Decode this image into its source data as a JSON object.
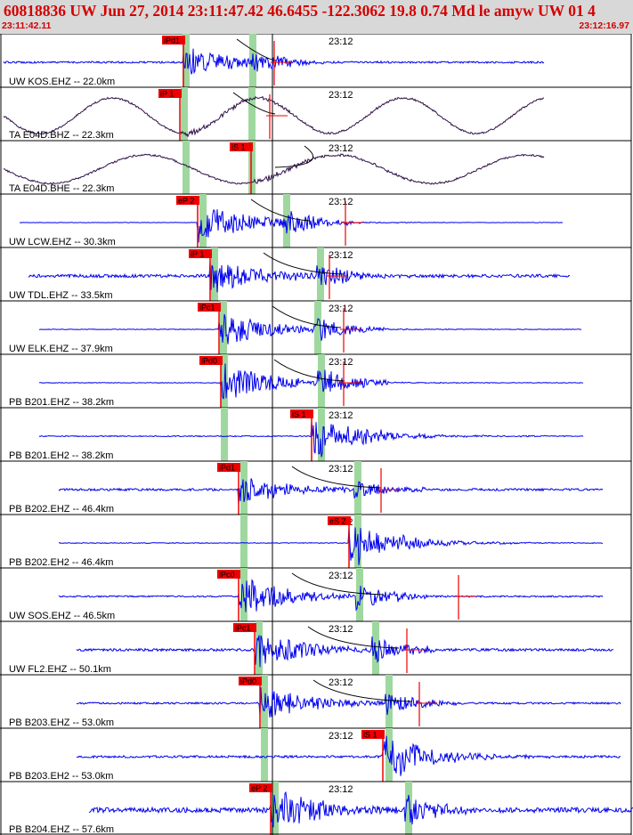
{
  "header": {
    "title": "60818836 UW Jun 27, 2014 23:11:47.42   46.6455 -122.3062 19.8 0.74 Md le amyw UW 01   4",
    "start_time": "23:11:42.11",
    "end_time": "23:12:16.97"
  },
  "minute_mark_label": "23:12",
  "colors": {
    "header_bg": "#d8d8d8",
    "header_text": "#d40000",
    "trace_blue": "#0000ee",
    "trace_dark": "#301048",
    "pick_red": "#ee0000",
    "pick_window_green": "#9fd89f"
  },
  "traces": [
    {
      "label": "UW KOS.EHZ -- 22.0km",
      "pick": "iPd1",
      "amp": 0.6,
      "noise": 0.15,
      "style": "blue"
    },
    {
      "label": "TA E04D.BHZ -- 22.3km",
      "pick": "iP 1",
      "amp": 1.0,
      "noise": 0.05,
      "style": "long"
    },
    {
      "label": "TA E04D.BHE -- 22.3km",
      "pick": "iS 1",
      "amp": 0.8,
      "noise": 0.1,
      "style": "long"
    },
    {
      "label": "UW LCW.EHZ -- 30.3km",
      "pick": "eP 2",
      "amp": 0.8,
      "noise": 0.03,
      "style": "blue"
    },
    {
      "label": "UW TDL.EHZ -- 33.5km",
      "pick": "iP 1",
      "amp": 0.7,
      "noise": 0.25,
      "style": "blue"
    },
    {
      "label": "UW ELK.EHZ -- 37.9km",
      "pick": "iPc1",
      "amp": 0.7,
      "noise": 0.05,
      "style": "blue"
    },
    {
      "label": "PB B201.EHZ -- 38.2km",
      "pick": "iPd0",
      "amp": 0.8,
      "noise": 0.05,
      "style": "blue"
    },
    {
      "label": "PB B201.EH2 -- 38.2km",
      "pick": "iS 1",
      "amp": 0.7,
      "noise": 0.08,
      "style": "blue"
    },
    {
      "label": "PB B202.EHZ -- 46.4km",
      "pick": "iPd1",
      "amp": 0.6,
      "noise": 0.18,
      "style": "blue"
    },
    {
      "label": "PB B202.EH2 -- 46.4km",
      "pick": "eS 2",
      "amp": 0.7,
      "noise": 0.06,
      "style": "blue"
    },
    {
      "label": "UW SOS.EHZ -- 46.5km",
      "pick": "iPc0",
      "amp": 0.8,
      "noise": 0.12,
      "style": "blue"
    },
    {
      "label": "UW FL2.EHZ -- 50.1km",
      "pick": "iPc1",
      "amp": 0.7,
      "noise": 0.2,
      "style": "blue"
    },
    {
      "label": "PB B203.EHZ -- 53.0km",
      "pick": "iPd0",
      "amp": 0.7,
      "noise": 0.15,
      "style": "blue"
    },
    {
      "label": "PB B203.EH2 -- 53.0km",
      "pick": "iS 1",
      "amp": 0.7,
      "noise": 0.18,
      "style": "blue"
    },
    {
      "label": "PB B204.EHZ -- 57.6km",
      "pick": "eP 2",
      "amp": 0.9,
      "noise": 0.4,
      "style": "blue"
    }
  ]
}
